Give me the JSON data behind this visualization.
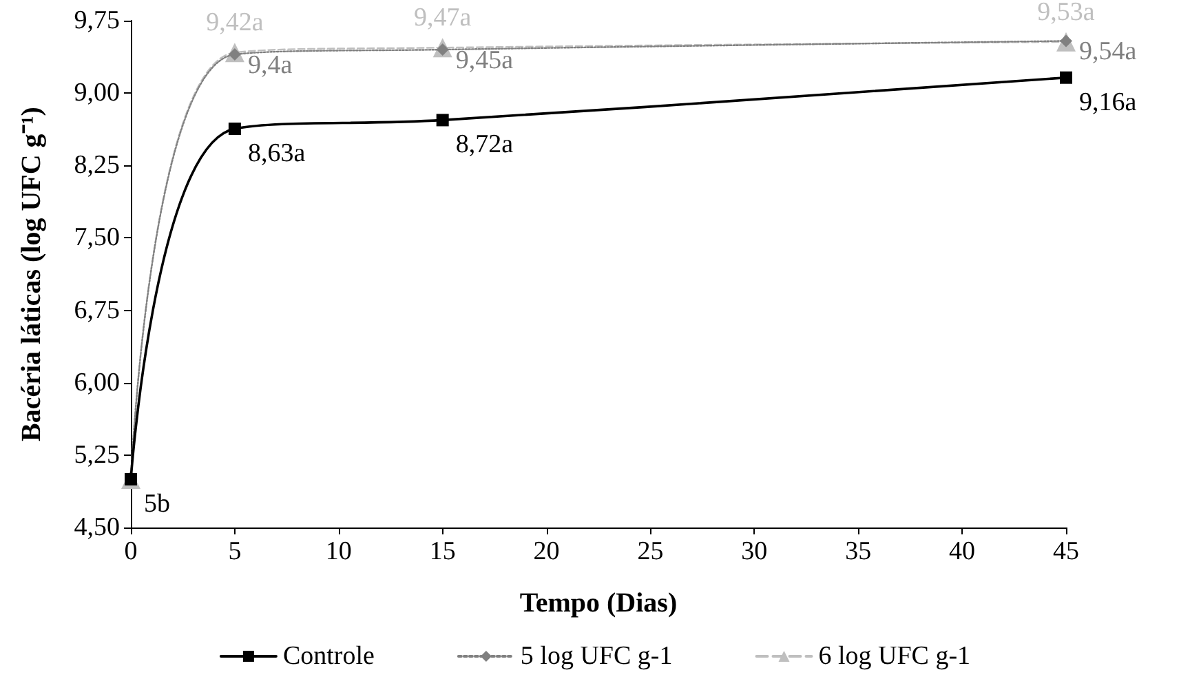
{
  "chart_data": {
    "type": "line",
    "xlabel": "Tempo (Dias)",
    "ylabel": "Bacéria láticas (log UFC g⁻¹)",
    "x": [
      0,
      5,
      15,
      45
    ],
    "series": [
      {
        "name": "Controle",
        "color": "#000000",
        "marker": "square",
        "line_style": "solid",
        "values": [
          5,
          8.63,
          8.72,
          9.16
        ],
        "value_labels": [
          "5b",
          "8,63a",
          "8,72a",
          "9,16a"
        ]
      },
      {
        "name": "5 log UFC g-1",
        "color": "#808080",
        "marker": "diamond",
        "line_style": "dotted",
        "values": [
          5,
          9.4,
          9.45,
          9.54
        ],
        "value_labels": [
          null,
          "9,4a",
          "9,45a",
          "9,54a"
        ]
      },
      {
        "name": "6 log UFC g-1",
        "color": "#bfbfbf",
        "marker": "triangle",
        "line_style": "dashed",
        "values": [
          5,
          9.42,
          9.47,
          9.53
        ],
        "value_labels": [
          null,
          "9,42a",
          "9,47a",
          "9,53a"
        ]
      }
    ],
    "xlim": [
      0,
      45
    ],
    "xticks": [
      0,
      5,
      10,
      15,
      20,
      25,
      30,
      35,
      40,
      45
    ],
    "ylim": [
      4.5,
      9.75
    ],
    "yticks": [
      {
        "value": 4.5,
        "label": "4,50"
      },
      {
        "value": 5.25,
        "label": "5,25"
      },
      {
        "value": 6,
        "label": "6,00"
      },
      {
        "value": 6.75,
        "label": "6,75"
      },
      {
        "value": 7.5,
        "label": "7,50"
      },
      {
        "value": 8.25,
        "label": "8,25"
      },
      {
        "value": 9,
        "label": "9,00"
      },
      {
        "value": 9.75,
        "label": "9,75"
      }
    ],
    "grid": false,
    "legend": "bottom"
  }
}
